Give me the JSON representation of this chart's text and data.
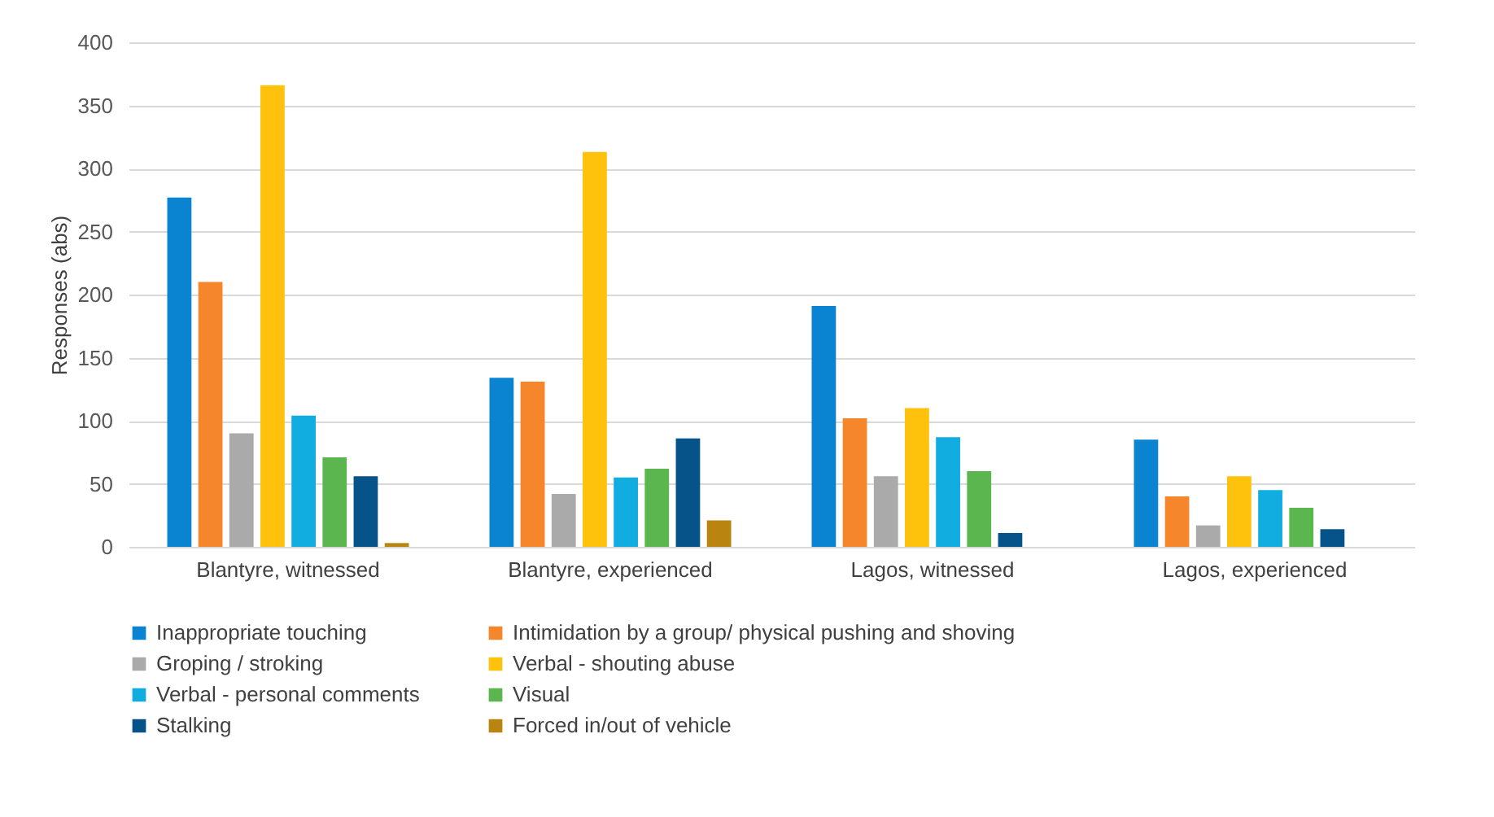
{
  "chart_data": {
    "type": "bar",
    "ylabel": "Responses (abs)",
    "categories": [
      "Blantyre, witnessed",
      "Blantyre, experienced",
      "Lagos, witnessed",
      "Lagos, experienced"
    ],
    "series": [
      {
        "name": "Inappropriate touching",
        "color": "#0a84d0",
        "values": [
          277,
          134,
          191,
          85
        ]
      },
      {
        "name": "Intimidation by a group/ physical pushing and shoving",
        "color": "#f5862b",
        "values": [
          210,
          131,
          102,
          40
        ]
      },
      {
        "name": "Groping / stroking",
        "color": "#aaaaaa",
        "values": [
          90,
          42,
          56,
          17
        ]
      },
      {
        "name": "Verbal - shouting abuse",
        "color": "#fec20c",
        "values": [
          366,
          313,
          110,
          56
        ]
      },
      {
        "name": "Verbal - personal comments",
        "color": "#12ade0",
        "values": [
          104,
          55,
          87,
          45
        ]
      },
      {
        "name": "Visual",
        "color": "#5cb64f",
        "values": [
          71,
          62,
          60,
          31
        ]
      },
      {
        "name": "Stalking",
        "color": "#06538a",
        "values": [
          56,
          86,
          11,
          14
        ]
      },
      {
        "name": "Forced in/out of vehicle",
        "color": "#b9840f",
        "values": [
          3,
          21,
          0,
          0
        ]
      }
    ],
    "ylim": [
      0,
      400
    ],
    "yticks": [
      0,
      50,
      100,
      150,
      200,
      250,
      300,
      350,
      400
    ],
    "grid": "y",
    "legend": "bottom"
  }
}
